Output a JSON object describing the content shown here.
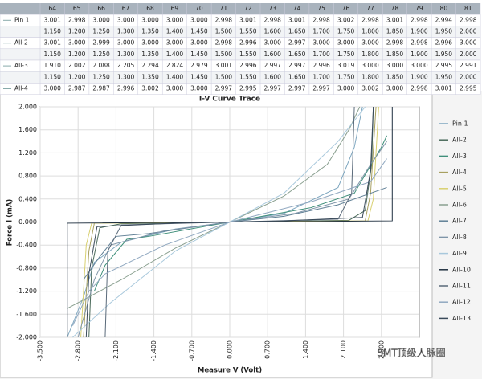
{
  "table": {
    "header": [
      "64",
      "65",
      "66",
      "67",
      "68",
      "69",
      "70",
      "71",
      "72",
      "73",
      "74",
      "75",
      "76",
      "77",
      "78",
      "79",
      "80",
      "81"
    ],
    "rows": [
      {
        "label": "Pin 1",
        "cells": [
          "3.001",
          "2.998",
          "3.000",
          "3.000",
          "3.000",
          "3.000",
          "3.000",
          "2.998",
          "3.001",
          "2.998",
          "3.001",
          "2.998",
          "3.002",
          "2.998",
          "3.001",
          "2.998",
          "2.994",
          "2.998"
        ]
      },
      {
        "cells": [
          "1.150",
          "1.200",
          "1.250",
          "1.300",
          "1.350",
          "1.400",
          "1.450",
          "1.500",
          "1.550",
          "1.600",
          "1.650",
          "1.700",
          "1.750",
          "1.800",
          "1.850",
          "1.900",
          "1.950",
          "2.000"
        ]
      },
      {
        "label": "All-2",
        "cells": [
          "3.001",
          "3.000",
          "2.999",
          "3.000",
          "3.000",
          "3.000",
          "3.000",
          "2.998",
          "2.996",
          "3.000",
          "2.997",
          "3.000",
          "3.000",
          "3.000",
          "2.998",
          "2.998",
          "2.996",
          "3.000"
        ]
      },
      {
        "cells": [
          "1.150",
          "1.200",
          "1.250",
          "1.300",
          "1.350",
          "1.400",
          "1.450",
          "1.500",
          "1.550",
          "1.600",
          "1.650",
          "1.700",
          "1.750",
          "1.800",
          "1.850",
          "1.900",
          "1.950",
          "2.000"
        ]
      },
      {
        "label": "All-3",
        "cells": [
          "1.910",
          "2.002",
          "2.088",
          "2.205",
          "2.294",
          "2.824",
          "2.979",
          "3.001",
          "2.996",
          "2.997",
          "2.997",
          "2.996",
          "3.019",
          "3.000",
          "3.000",
          "3.000",
          "2.995",
          "2.991"
        ]
      },
      {
        "cells": [
          "1.150",
          "1.200",
          "1.250",
          "1.300",
          "1.350",
          "1.400",
          "1.450",
          "1.500",
          "1.550",
          "1.600",
          "1.650",
          "1.700",
          "1.750",
          "1.800",
          "1.850",
          "1.900",
          "1.950",
          "2.000"
        ]
      },
      {
        "label": "All-4",
        "cells": [
          "3.000",
          "2.987",
          "2.987",
          "2.996",
          "3.002",
          "3.000",
          "3.000",
          "2.997",
          "2.995",
          "2.997",
          "2.997",
          "2.997",
          "3.000",
          "3.002",
          "3.000",
          "2.998",
          "3.001",
          "2.995"
        ]
      }
    ]
  },
  "chart_data": {
    "type": "line",
    "title": "I-V Curve Trace",
    "x_label": "Measure V (Volt)",
    "y_label": "Force I (mA)",
    "xlim": [
      -3.5,
      3.5
    ],
    "ylim": [
      -2,
      2
    ],
    "xticks": [
      {
        "value": -3.5,
        "label": "-3.500"
      },
      {
        "value": -2.8,
        "label": "-2.800"
      },
      {
        "value": -2.1,
        "label": "-2.100"
      },
      {
        "value": -1.4,
        "label": "-1.400"
      },
      {
        "value": -0.7,
        "label": "-0.700"
      },
      {
        "value": 0,
        "label": "0.000"
      },
      {
        "value": 0.7,
        "label": "0.700"
      },
      {
        "value": 1.4,
        "label": "1.400"
      },
      {
        "value": 2.1,
        "label": "2.100"
      },
      {
        "value": 2.8,
        "label": "2.800"
      }
    ],
    "yticks": [
      {
        "value": 2,
        "label": "2.000"
      },
      {
        "value": 1.6,
        "label": "1.600"
      },
      {
        "value": 1.2,
        "label": "1.200"
      },
      {
        "value": 0.8,
        "label": "0.800"
      },
      {
        "value": 0.4,
        "label": "0.400"
      },
      {
        "value": 0,
        "label": "0.000"
      },
      {
        "value": -0.4,
        "label": "-0.400"
      },
      {
        "value": -0.8,
        "label": "-0.800"
      },
      {
        "value": -1.2,
        "label": "-1.200"
      },
      {
        "value": -1.6,
        "label": "-1.600"
      },
      {
        "value": -2,
        "label": "-2.000"
      }
    ],
    "grid": true,
    "series": [
      {
        "name": "Pin 1",
        "color": "#7fa7c0",
        "x": [
          -3.0,
          -2.7,
          -2.5,
          -2.0,
          -1.0,
          0,
          1.0,
          2.0,
          2.3,
          2.45
        ],
        "values": [
          -2.0,
          -1.3,
          -0.7,
          -0.35,
          -0.12,
          0,
          0.15,
          0.6,
          1.3,
          2.0
        ]
      },
      {
        "name": "All-2",
        "color": "#4a6a5a",
        "x": [
          -2.6,
          -2.55,
          -2.4,
          -2.0,
          0,
          2.2,
          2.5,
          2.62,
          2.65
        ],
        "values": [
          -2.0,
          -0.8,
          -0.1,
          -0.03,
          0,
          0.03,
          0.2,
          1.0,
          2.0
        ]
      },
      {
        "name": "All-3",
        "color": "#3f8f7a",
        "x": [
          -2.5,
          -2.3,
          -1.9,
          -1.5,
          0,
          1.5,
          2.3,
          2.8,
          2.9
        ],
        "values": [
          -1.2,
          -0.75,
          -0.3,
          -0.25,
          0,
          0.25,
          0.5,
          1.3,
          1.5
        ]
      },
      {
        "name": "All-4",
        "color": "#a8a060",
        "x": [
          -2.7,
          -2.6,
          -2.5,
          -1.0,
          0,
          1.0,
          2.5,
          2.6,
          2.7
        ],
        "values": [
          -2.0,
          -0.5,
          -0.02,
          -0.01,
          0,
          0.01,
          0.02,
          0.5,
          2.0
        ]
      },
      {
        "name": "All-5",
        "color": "#d8d070",
        "x": [
          -2.75,
          -2.65,
          -2.55,
          -1.0,
          0,
          1.0,
          2.55,
          2.65,
          2.75
        ],
        "values": [
          -2.0,
          -0.4,
          -0.02,
          -0.01,
          0,
          0.01,
          0.02,
          0.4,
          2.0
        ]
      },
      {
        "name": "All-6",
        "color": "#8aa090",
        "x": [
          -3.0,
          -2.0,
          -1.0,
          0,
          1.0,
          1.8,
          2.2,
          2.4
        ],
        "values": [
          -1.5,
          -1.0,
          -0.45,
          0,
          0.45,
          1.0,
          1.6,
          2.0
        ]
      },
      {
        "name": "All-7",
        "color": "#5f7f95",
        "x": [
          -2.7,
          -2.4,
          -2.1,
          -1.5,
          0,
          1.0,
          2.0,
          2.9
        ],
        "values": [
          -1.0,
          -0.6,
          -0.25,
          -0.2,
          0,
          0.1,
          0.3,
          0.6
        ]
      },
      {
        "name": "All-8",
        "color": "#7f95a8",
        "x": [
          -2.8,
          -2.5,
          -2.2,
          -1.2,
          0,
          1.2,
          2.2,
          2.6,
          2.9
        ],
        "values": [
          -2.0,
          -1.0,
          -0.4,
          -0.15,
          0,
          0.15,
          0.4,
          1.0,
          1.4
        ]
      },
      {
        "name": "All-9",
        "color": "#a8c8dc",
        "x": [
          -2.9,
          -2.2,
          -1.0,
          0,
          1.0,
          2.0,
          2.5
        ],
        "values": [
          -2.0,
          -1.4,
          -0.5,
          0,
          0.5,
          1.4,
          2.0
        ]
      },
      {
        "name": "All-10",
        "color": "#1f2f3f",
        "x": [
          -3.0,
          -3.0,
          3.0,
          3.0
        ],
        "values": [
          -2.0,
          -0.02,
          0.02,
          2.0
        ]
      },
      {
        "name": "All-11",
        "color": "#5a6a7a",
        "x": [
          -2.3,
          -2.25,
          -2.0,
          0,
          2.0,
          2.25,
          2.3
        ],
        "values": [
          -2.0,
          -0.5,
          -0.05,
          0,
          0.05,
          0.5,
          2.0
        ]
      },
      {
        "name": "All-12",
        "color": "#90a8c0",
        "x": [
          -2.9,
          -2.6,
          -2.3,
          -1.2,
          0,
          1.5,
          2.6,
          2.9
        ],
        "values": [
          -1.8,
          -1.2,
          -0.9,
          -0.4,
          0,
          0.35,
          0.7,
          1.1
        ]
      },
      {
        "name": "All-13",
        "color": "#3a4a5a",
        "x": [
          -2.65,
          -2.6,
          -2.45,
          -1.0,
          0,
          1.0,
          2.45,
          2.6,
          2.65
        ],
        "values": [
          -2.0,
          -0.9,
          -0.08,
          -0.02,
          0,
          0.02,
          0.08,
          0.9,
          2.0
        ]
      }
    ],
    "watermark": "SMT顶级人脉圈"
  }
}
